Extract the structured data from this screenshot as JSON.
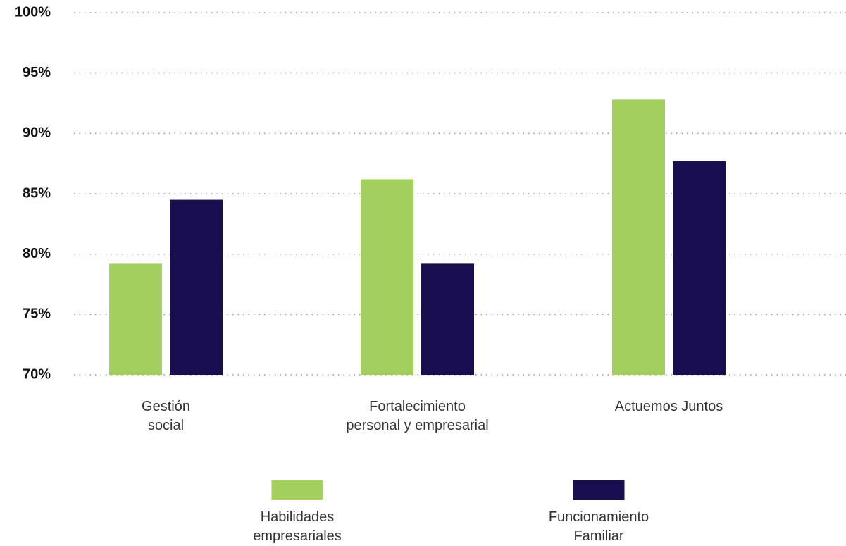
{
  "chart_data": {
    "type": "bar",
    "categories": [
      "Gestión\nsocial",
      "Fortalecimiento\npersonal y empresarial",
      "Actuemos Juntos"
    ],
    "series": [
      {
        "name": "Habilidades\nempresariales",
        "color": "#a3cf5f",
        "values": [
          79.2,
          86.2,
          92.8
        ]
      },
      {
        "name": "Funcionamiento\nFamiliar",
        "color": "#180e50",
        "values": [
          84.5,
          79.2,
          87.7
        ]
      }
    ],
    "ylim": [
      70,
      100
    ],
    "yticks": [
      {
        "value": 70,
        "label": "70%"
      },
      {
        "value": 75,
        "label": "75%"
      },
      {
        "value": 80,
        "label": "80%"
      },
      {
        "value": 85,
        "label": "85%"
      },
      {
        "value": 90,
        "label": "90%"
      },
      {
        "value": 95,
        "label": "95%"
      },
      {
        "value": 100,
        "label": "100%"
      }
    ],
    "grid": true
  }
}
